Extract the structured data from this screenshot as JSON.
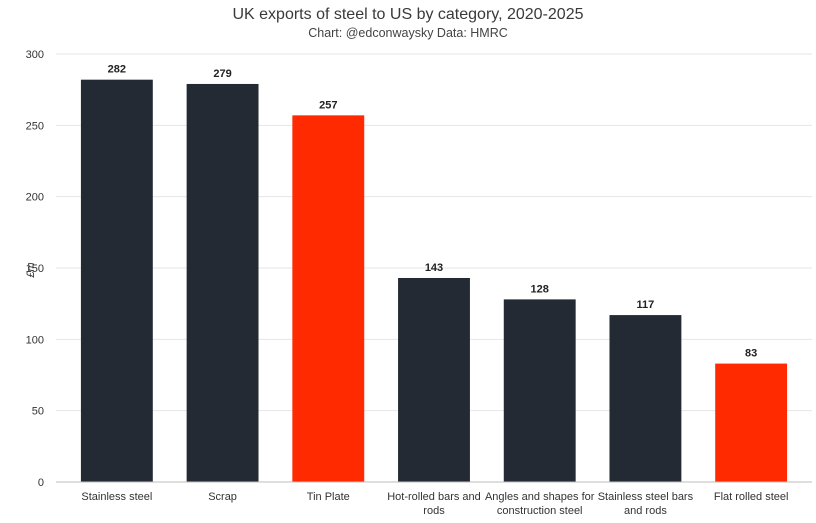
{
  "chart_data": {
    "type": "bar",
    "title": "UK exports of steel to US by category, 2020-2025",
    "subtitle": "Chart: @edconwaysky Data: HMRC",
    "ylabel": "£m",
    "xlabel": "",
    "ylim": [
      0,
      300
    ],
    "yticks": [
      0,
      50,
      100,
      150,
      200,
      250,
      300
    ],
    "grid": true,
    "categories": [
      "Stainless steel",
      "Scrap",
      "Tin Plate",
      "Hot-rolled bars and rods",
      "Angles and shapes for construction steel",
      "Stainless steel bars and rods",
      "Flat rolled steel"
    ],
    "category_lines": [
      [
        "Stainless steel"
      ],
      [
        "Scrap"
      ],
      [
        "Tin Plate"
      ],
      [
        "Hot-rolled bars and",
        "rods"
      ],
      [
        "Angles and shapes for",
        "construction steel"
      ],
      [
        "Stainless steel bars",
        "and rods"
      ],
      [
        "Flat rolled steel"
      ]
    ],
    "values": [
      282,
      279,
      257,
      143,
      128,
      117,
      83
    ],
    "colors": [
      "#242a33",
      "#242a33",
      "#ff2a00",
      "#242a33",
      "#242a33",
      "#242a33",
      "#ff2a00"
    ]
  }
}
